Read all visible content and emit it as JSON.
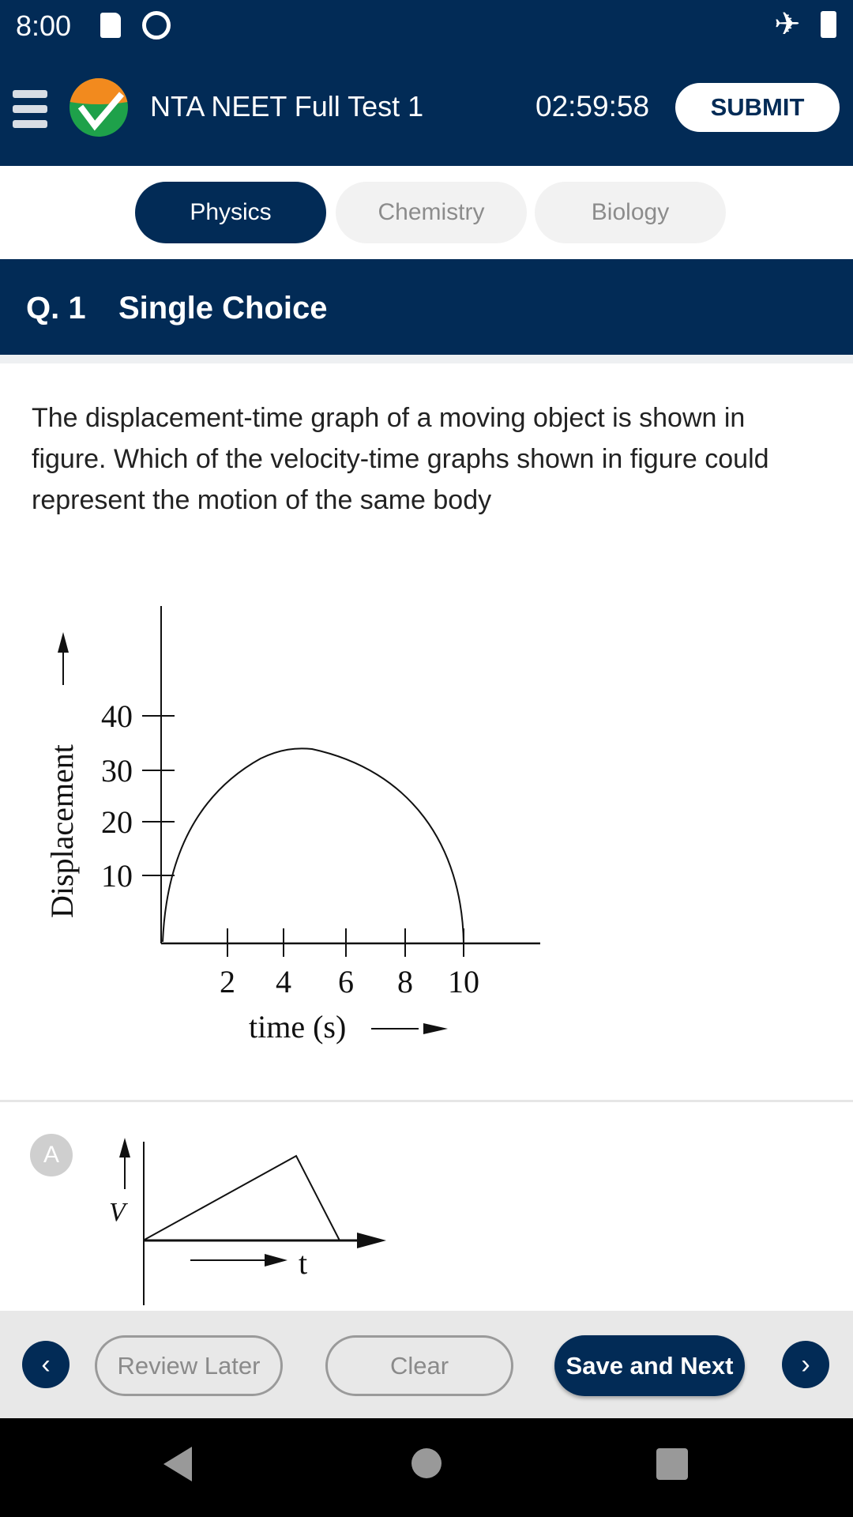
{
  "status_bar": {
    "time": "8:00",
    "icons": [
      "sd-card-icon",
      "vpn-icon",
      "airplane-icon",
      "battery-icon"
    ]
  },
  "header": {
    "title": "NTA NEET Full Test 1",
    "timer": "02:59:58",
    "submit_label": "SUBMIT",
    "logo": "nta-check-logo"
  },
  "tabs": [
    {
      "label": "Physics",
      "active": true
    },
    {
      "label": "Chemistry",
      "active": false
    },
    {
      "label": "Biology",
      "active": false
    }
  ],
  "question": {
    "number": "Q. 1",
    "type": "Single Choice",
    "text": "The displacement-time graph of a moving object is shown in figure. Which of the velocity-time graphs shown in figure could represent the motion of the same body",
    "figure": {
      "ylabel": "Displacement",
      "xlabel": "time (s)",
      "y_ticks": [
        "40",
        "30",
        "20",
        "10"
      ],
      "x_ticks": [
        "2",
        "4",
        "6",
        "8",
        "10"
      ]
    }
  },
  "options": [
    {
      "letter": "A",
      "figure": {
        "ylabel": "V",
        "xlabel": "t"
      }
    }
  ],
  "bottom_bar": {
    "review_label": "Review Later",
    "clear_label": "Clear",
    "save_label": "Save and Next"
  },
  "colors": {
    "primary": "#022b56",
    "tab_inactive": "#f2f2f2"
  }
}
